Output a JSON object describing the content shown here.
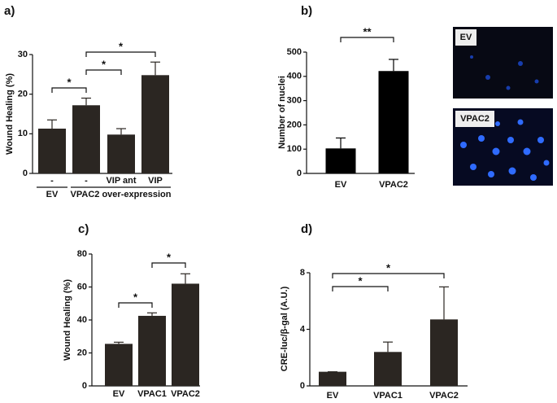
{
  "chart_data": [
    {
      "type": "bar",
      "label": "a)",
      "y_label": "Wound Healing (%)",
      "categories": [
        "-",
        "-",
        "VIP ant",
        "VIP"
      ],
      "values": [
        11.3,
        17.2,
        9.8,
        24.8
      ],
      "errors": [
        2.2,
        1.8,
        1.5,
        3.3
      ],
      "ylim": [
        0,
        30
      ],
      "yticks": [
        0,
        10,
        20,
        30
      ],
      "color": "#2b2622",
      "groups": [
        {
          "label": "EV",
          "from": 0,
          "to": 0
        },
        {
          "label": "VPAC2 over-expression",
          "from": 1,
          "to": 3
        }
      ],
      "significance": [
        {
          "from": 0,
          "to": 1,
          "label": "*"
        },
        {
          "from": 1,
          "to": 2,
          "label": "*"
        },
        {
          "from": 1,
          "to": 3,
          "label": "*"
        }
      ]
    },
    {
      "type": "bar",
      "label": "b)",
      "y_label": "Number of nuclei",
      "categories": [
        "EV",
        "VPAC2"
      ],
      "values": [
        103,
        422
      ],
      "errors": [
        43,
        48
      ],
      "ylim": [
        0,
        500
      ],
      "yticks": [
        0,
        100,
        200,
        300,
        400,
        500
      ],
      "color": "#000000",
      "significance": [
        {
          "from": 0,
          "to": 1,
          "label": "**"
        }
      ],
      "image_labels": [
        "EV",
        "VPAC2"
      ]
    },
    {
      "type": "bar",
      "label": "c)",
      "y_label": "Wound Healing (%)",
      "categories": [
        "EV",
        "VPAC1",
        "VPAC2"
      ],
      "values": [
        25.5,
        42.5,
        62
      ],
      "errors": [
        1,
        1.8,
        6
      ],
      "ylim": [
        0,
        80
      ],
      "yticks": [
        0,
        20,
        40,
        60,
        80
      ],
      "color": "#2b2622",
      "significance": [
        {
          "from": 0,
          "to": 1,
          "label": "*"
        },
        {
          "from": 1,
          "to": 2,
          "label": "*"
        }
      ]
    },
    {
      "type": "bar",
      "label": "d)",
      "y_label": "CRE-luc/β-gal (A.U.)",
      "categories": [
        "EV",
        "VPAC1",
        "VPAC2"
      ],
      "values": [
        1.0,
        2.4,
        4.7
      ],
      "errors": [
        0,
        0.7,
        2.3
      ],
      "ylim": [
        0,
        8
      ],
      "yticks": [
        0,
        4,
        8
      ],
      "color": "#2b2622",
      "significance": [
        {
          "from": 0,
          "to": 1,
          "label": "*"
        },
        {
          "from": 0,
          "to": 2,
          "label": "*"
        }
      ]
    }
  ]
}
